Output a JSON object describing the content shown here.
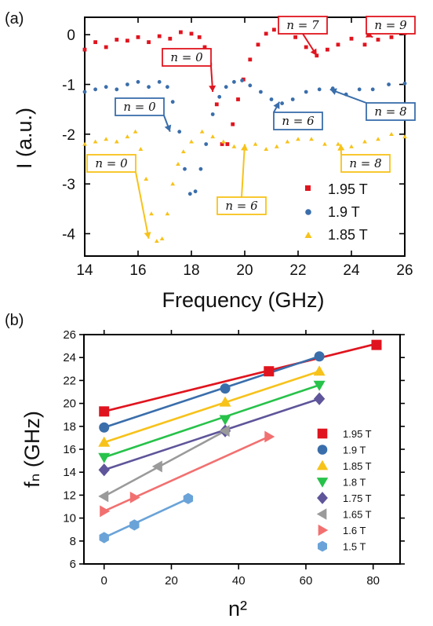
{
  "chart_data": [
    {
      "panel_label": "(a)",
      "type": "scatter",
      "xlabel": "Frequency (GHz)",
      "ylabel": "I (a.u.)",
      "xlim": [
        14,
        26
      ],
      "ylim": [
        -4.45,
        0.35
      ],
      "xticks": [
        "14",
        "16",
        "18",
        "20",
        "22",
        "24",
        "26"
      ],
      "yticks": [
        "0",
        "-1",
        "-2",
        "-3",
        "-4"
      ],
      "colors": {
        "red": "#e0141e",
        "blue": "#3a6eab",
        "yellow": "#f7c21a"
      },
      "legend": {
        "position": "bottom-right",
        "entries": [
          "1.95 T",
          "1.9 T",
          "1.85 T"
        ]
      },
      "series": [
        {
          "name": "1.95 T",
          "marker": "square",
          "color": "#e0141e",
          "points": [
            [
              14,
              -0.3
            ],
            [
              14.4,
              -0.15
            ],
            [
              14.8,
              -0.25
            ],
            [
              15.2,
              -0.1
            ],
            [
              15.6,
              -0.12
            ],
            [
              16,
              -0.05
            ],
            [
              16.4,
              -0.15
            ],
            [
              16.8,
              -0.03
            ],
            [
              17.2,
              -0.08
            ],
            [
              17.6,
              0.05
            ],
            [
              18,
              0.02
            ],
            [
              18.3,
              -0.05
            ],
            [
              18.5,
              -0.25
            ],
            [
              18.7,
              -0.6
            ],
            [
              18.95,
              -1.4
            ],
            [
              19.15,
              -2.2
            ],
            [
              19.35,
              -2.2
            ],
            [
              19.55,
              -1.8
            ],
            [
              19.75,
              -1.3
            ],
            [
              19.95,
              -0.9
            ],
            [
              20.2,
              -0.5
            ],
            [
              20.5,
              -0.2
            ],
            [
              20.8,
              0.02
            ],
            [
              21.1,
              0.1
            ],
            [
              21.5,
              0.1
            ],
            [
              21.9,
              -0.05
            ],
            [
              22.3,
              -0.25
            ],
            [
              22.7,
              -0.42
            ],
            [
              23.1,
              -0.3
            ],
            [
              23.5,
              -0.2
            ],
            [
              24,
              -0.08
            ],
            [
              24.5,
              -0.2
            ],
            [
              25,
              -0.1
            ],
            [
              25.5,
              -0.05
            ],
            [
              26,
              0.03
            ]
          ]
        },
        {
          "name": "1.9 T",
          "marker": "circle",
          "color": "#3a6eab",
          "points": [
            [
              14,
              -1.15
            ],
            [
              14.4,
              -1.1
            ],
            [
              14.8,
              -1.05
            ],
            [
              15.2,
              -1.1
            ],
            [
              15.6,
              -1.0
            ],
            [
              16,
              -0.95
            ],
            [
              16.4,
              -1.05
            ],
            [
              16.8,
              -0.95
            ],
            [
              17.1,
              -1.05
            ],
            [
              17.3,
              -1.35
            ],
            [
              17.55,
              -1.95
            ],
            [
              17.75,
              -2.7
            ],
            [
              17.95,
              -3.2
            ],
            [
              18.15,
              -3.15
            ],
            [
              18.35,
              -2.7
            ],
            [
              18.55,
              -2.2
            ],
            [
              18.8,
              -1.6
            ],
            [
              19.05,
              -1.25
            ],
            [
              19.3,
              -1.05
            ],
            [
              19.6,
              -0.95
            ],
            [
              19.9,
              -0.92
            ],
            [
              20.2,
              -1.02
            ],
            [
              20.6,
              -1.15
            ],
            [
              21,
              -1.3
            ],
            [
              21.4,
              -1.38
            ],
            [
              21.8,
              -1.3
            ],
            [
              22.3,
              -1.15
            ],
            [
              22.8,
              -1.1
            ],
            [
              23.3,
              -1.08
            ],
            [
              23.8,
              -1.2
            ],
            [
              24.3,
              -1.1
            ],
            [
              24.8,
              -1.1
            ],
            [
              25.4,
              -1.0
            ],
            [
              26,
              -0.98
            ]
          ]
        },
        {
          "name": "1.85 T",
          "marker": "triangle",
          "color": "#f7c21a",
          "points": [
            [
              14,
              -2.2
            ],
            [
              14.4,
              -2.15
            ],
            [
              14.8,
              -2.1
            ],
            [
              15.2,
              -2.15
            ],
            [
              15.6,
              -2.05
            ],
            [
              15.9,
              -1.95
            ],
            [
              16.1,
              -2.3
            ],
            [
              16.3,
              -2.9
            ],
            [
              16.5,
              -3.6
            ],
            [
              16.7,
              -4.15
            ],
            [
              16.9,
              -4.1
            ],
            [
              17.1,
              -3.6
            ],
            [
              17.3,
              -3.0
            ],
            [
              17.5,
              -2.6
            ],
            [
              17.7,
              -2.35
            ],
            [
              18,
              -2.15
            ],
            [
              18.4,
              -1.95
            ],
            [
              18.8,
              -2.05
            ],
            [
              19.2,
              -2.15
            ],
            [
              19.6,
              -2.25
            ],
            [
              20,
              -2.25
            ],
            [
              20.4,
              -2.2
            ],
            [
              20.8,
              -2.3
            ],
            [
              21.2,
              -2.25
            ],
            [
              21.6,
              -2.15
            ],
            [
              22,
              -2.1
            ],
            [
              22.5,
              -2.1
            ],
            [
              23,
              -2.2
            ],
            [
              23.5,
              -2.2
            ],
            [
              24,
              -2.25
            ],
            [
              24.5,
              -2.15
            ],
            [
              25,
              -2.1
            ],
            [
              25.5,
              -2.0
            ],
            [
              26,
              -2.05
            ]
          ]
        }
      ],
      "annotations": [
        {
          "text": "n = 7",
          "color": "#e0141e",
          "target": [
            22.7,
            -0.42
          ]
        },
        {
          "text": "n = 9",
          "color": "#e0141e",
          "target": [
            24.8,
            -0.05
          ]
        },
        {
          "text": "n = 0",
          "color": "#e0141e",
          "target": [
            18.8,
            -1.15
          ]
        },
        {
          "text": "n = 0",
          "color": "#3a6eab",
          "target": [
            17.2,
            -1.95
          ]
        },
        {
          "text": "n = 6",
          "color": "#3a6eab",
          "target": [
            21.3,
            -1.35
          ]
        },
        {
          "text": "n = 8",
          "color": "#3a6eab",
          "target": [
            23.2,
            -1.1
          ]
        },
        {
          "text": "n = 0",
          "color": "#f7c21a",
          "target": [
            16.4,
            -4.1
          ]
        },
        {
          "text": "n = 6",
          "color": "#f7c21a",
          "target": [
            20,
            -2.2
          ]
        },
        {
          "text": "n = 8",
          "color": "#f7c21a",
          "target": [
            23.6,
            -2.2
          ]
        }
      ]
    },
    {
      "panel_label": "(b)",
      "type": "scatter",
      "xlabel": "n²",
      "ylabel": "fₙ (GHz)",
      "xlim": [
        -6,
        88
      ],
      "ylim": [
        6,
        26
      ],
      "xticks": [
        "0",
        "20",
        "40",
        "60",
        "80"
      ],
      "yticks": [
        "6",
        "8",
        "10",
        "12",
        "14",
        "16",
        "18",
        "20",
        "22",
        "24",
        "26"
      ],
      "legend": {
        "position": "right",
        "entries": [
          "1.95 T",
          "1.9 T",
          "1.85 T",
          "1.8 T",
          "1.75 T",
          "1.65 T",
          "1.6 T",
          "1.5 T"
        ]
      },
      "series": [
        {
          "name": "1.95 T",
          "marker": "square",
          "color": "#e0141e",
          "points": [
            [
              0,
              19.3
            ],
            [
              49,
              22.8
            ],
            [
              81,
              25.1
            ]
          ],
          "fit": [
            [
              0,
              19.3
            ],
            [
              81,
              25.2
            ]
          ]
        },
        {
          "name": "1.9 T",
          "marker": "circle",
          "color": "#3a6eab",
          "points": [
            [
              0,
              17.9
            ],
            [
              36,
              21.3
            ],
            [
              64,
              24.1
            ]
          ],
          "fit": [
            [
              0,
              17.9
            ],
            [
              64,
              24.1
            ]
          ]
        },
        {
          "name": "1.85 T",
          "marker": "triangle-up",
          "color": "#f7c21a",
          "points": [
            [
              0,
              16.6
            ],
            [
              36,
              20.1
            ],
            [
              64,
              22.8
            ]
          ],
          "fit": [
            [
              0,
              16.6
            ],
            [
              64,
              22.8
            ]
          ]
        },
        {
          "name": "1.8 T",
          "marker": "triangle-down",
          "color": "#27c24a",
          "points": [
            [
              0,
              15.3
            ],
            [
              36,
              18.6
            ],
            [
              64,
              21.6
            ]
          ],
          "fit": [
            [
              0,
              15.3
            ],
            [
              64,
              21.6
            ]
          ]
        },
        {
          "name": "1.75 T",
          "marker": "diamond",
          "color": "#5e559a",
          "points": [
            [
              0,
              14.2
            ],
            [
              36,
              17.6
            ],
            [
              64,
              20.4
            ]
          ],
          "fit": [
            [
              0,
              14.2
            ],
            [
              64,
              20.4
            ]
          ]
        },
        {
          "name": "1.65 T",
          "marker": "triangle-left",
          "color": "#9a9a9a",
          "points": [
            [
              0,
              11.9
            ],
            [
              16,
              14.5
            ],
            [
              36,
              17.6
            ]
          ],
          "fit": [
            [
              0,
              11.9
            ],
            [
              36,
              17.6
            ]
          ]
        },
        {
          "name": "1.6 T",
          "marker": "triangle-right",
          "color": "#f27070",
          "points": [
            [
              0,
              10.6
            ],
            [
              9,
              11.8
            ],
            [
              49,
              17.1
            ]
          ],
          "fit": [
            [
              0,
              10.6
            ],
            [
              49,
              17.1
            ]
          ]
        },
        {
          "name": "1.5 T",
          "marker": "hexagon",
          "color": "#6aa3d8",
          "points": [
            [
              0,
              8.3
            ],
            [
              9,
              9.4
            ],
            [
              25,
              11.7
            ]
          ],
          "fit": [
            [
              0,
              8.3
            ],
            [
              25,
              11.7
            ]
          ]
        }
      ]
    }
  ]
}
